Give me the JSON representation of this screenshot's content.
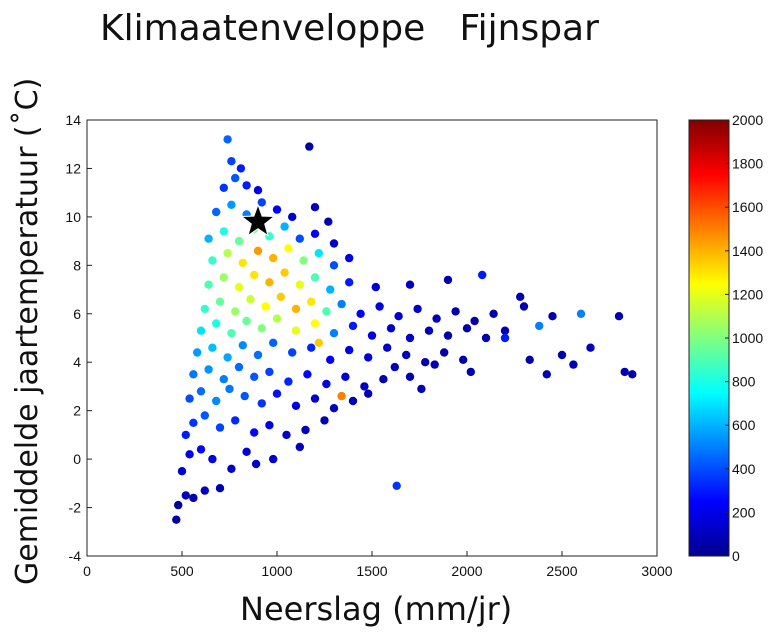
{
  "chart_data": {
    "type": "scatter",
    "title": "Klimaatenveloppe   Fijnspar",
    "xlabel": "Neerslag (mm/jr)",
    "ylabel": "Gemiddelde jaartemperatuur (˚C)",
    "xlim": [
      0,
      3000
    ],
    "ylim": [
      -4,
      14
    ],
    "x_ticks": [
      "0",
      "500",
      "1000",
      "1500",
      "2000",
      "2500",
      "3000"
    ],
    "y_ticks": [
      "-4",
      "-2",
      "0",
      "2",
      "4",
      "6",
      "8",
      "10",
      "12",
      "14"
    ],
    "grid": false,
    "colorbar": {
      "range": [
        0,
        2000
      ],
      "ticks": [
        "0",
        "200",
        "400",
        "600",
        "800",
        "1000",
        "1200",
        "1400",
        "1600",
        "1800",
        "2000"
      ],
      "colormap": "jet"
    },
    "marker": {
      "type": "star",
      "x": 900,
      "y": 9.8,
      "color": "#000000"
    },
    "points": [
      {
        "x": 470,
        "y": -2.5,
        "c": 80
      },
      {
        "x": 480,
        "y": -1.9,
        "c": 60
      },
      {
        "x": 520,
        "y": -1.5,
        "c": 120
      },
      {
        "x": 560,
        "y": -1.6,
        "c": 90
      },
      {
        "x": 620,
        "y": -1.3,
        "c": 140
      },
      {
        "x": 700,
        "y": -1.2,
        "c": 100
      },
      {
        "x": 500,
        "y": -0.5,
        "c": 160
      },
      {
        "x": 540,
        "y": 0.2,
        "c": 220
      },
      {
        "x": 600,
        "y": 0.4,
        "c": 260
      },
      {
        "x": 660,
        "y": 0.0,
        "c": 200
      },
      {
        "x": 760,
        "y": -0.4,
        "c": 130
      },
      {
        "x": 840,
        "y": 0.3,
        "c": 180
      },
      {
        "x": 520,
        "y": 1.0,
        "c": 300
      },
      {
        "x": 560,
        "y": 1.5,
        "c": 350
      },
      {
        "x": 620,
        "y": 1.8,
        "c": 420
      },
      {
        "x": 700,
        "y": 1.3,
        "c": 380
      },
      {
        "x": 780,
        "y": 1.6,
        "c": 330
      },
      {
        "x": 880,
        "y": 1.1,
        "c": 260
      },
      {
        "x": 960,
        "y": 1.4,
        "c": 200
      },
      {
        "x": 1050,
        "y": 1.0,
        "c": 140
      },
      {
        "x": 1150,
        "y": 1.2,
        "c": 110
      },
      {
        "x": 540,
        "y": 2.5,
        "c": 400
      },
      {
        "x": 600,
        "y": 2.8,
        "c": 460
      },
      {
        "x": 680,
        "y": 2.4,
        "c": 520
      },
      {
        "x": 750,
        "y": 2.9,
        "c": 480
      },
      {
        "x": 830,
        "y": 2.6,
        "c": 420
      },
      {
        "x": 920,
        "y": 2.3,
        "c": 350
      },
      {
        "x": 1000,
        "y": 2.7,
        "c": 280
      },
      {
        "x": 1100,
        "y": 2.2,
        "c": 200
      },
      {
        "x": 1200,
        "y": 2.5,
        "c": 160
      },
      {
        "x": 1300,
        "y": 2.1,
        "c": 120
      },
      {
        "x": 1400,
        "y": 2.4,
        "c": 100
      },
      {
        "x": 560,
        "y": 3.5,
        "c": 480
      },
      {
        "x": 640,
        "y": 3.7,
        "c": 540
      },
      {
        "x": 720,
        "y": 3.3,
        "c": 500
      },
      {
        "x": 800,
        "y": 3.8,
        "c": 460
      },
      {
        "x": 880,
        "y": 3.4,
        "c": 420
      },
      {
        "x": 960,
        "y": 3.6,
        "c": 380
      },
      {
        "x": 1060,
        "y": 3.2,
        "c": 320
      },
      {
        "x": 1160,
        "y": 3.5,
        "c": 260
      },
      {
        "x": 1260,
        "y": 3.1,
        "c": 210
      },
      {
        "x": 1360,
        "y": 3.4,
        "c": 170
      },
      {
        "x": 1460,
        "y": 3.0,
        "c": 130
      },
      {
        "x": 1560,
        "y": 3.3,
        "c": 100
      },
      {
        "x": 1340,
        "y": 2.6,
        "c": 1500
      },
      {
        "x": 580,
        "y": 4.4,
        "c": 560
      },
      {
        "x": 660,
        "y": 4.6,
        "c": 620
      },
      {
        "x": 740,
        "y": 4.2,
        "c": 580
      },
      {
        "x": 820,
        "y": 4.7,
        "c": 520
      },
      {
        "x": 900,
        "y": 4.3,
        "c": 470
      },
      {
        "x": 980,
        "y": 4.8,
        "c": 440
      },
      {
        "x": 1080,
        "y": 4.4,
        "c": 380
      },
      {
        "x": 1180,
        "y": 4.6,
        "c": 320
      },
      {
        "x": 1280,
        "y": 4.1,
        "c": 250
      },
      {
        "x": 1380,
        "y": 4.5,
        "c": 200
      },
      {
        "x": 1480,
        "y": 4.2,
        "c": 160
      },
      {
        "x": 1580,
        "y": 4.6,
        "c": 140
      },
      {
        "x": 1680,
        "y": 4.3,
        "c": 120
      },
      {
        "x": 1780,
        "y": 4.0,
        "c": 100
      },
      {
        "x": 1880,
        "y": 4.4,
        "c": 90
      },
      {
        "x": 1980,
        "y": 4.1,
        "c": 80
      },
      {
        "x": 600,
        "y": 5.3,
        "c": 700
      },
      {
        "x": 680,
        "y": 5.6,
        "c": 800
      },
      {
        "x": 760,
        "y": 5.2,
        "c": 900
      },
      {
        "x": 840,
        "y": 5.7,
        "c": 950
      },
      {
        "x": 920,
        "y": 5.4,
        "c": 1000
      },
      {
        "x": 1000,
        "y": 5.8,
        "c": 1100
      },
      {
        "x": 1100,
        "y": 5.3,
        "c": 1200
      },
      {
        "x": 1200,
        "y": 5.6,
        "c": 1250
      },
      {
        "x": 1220,
        "y": 4.8,
        "c": 1350
      },
      {
        "x": 1300,
        "y": 5.2,
        "c": 500
      },
      {
        "x": 1400,
        "y": 5.5,
        "c": 300
      },
      {
        "x": 1500,
        "y": 5.1,
        "c": 200
      },
      {
        "x": 1600,
        "y": 5.4,
        "c": 160
      },
      {
        "x": 1700,
        "y": 5.0,
        "c": 130
      },
      {
        "x": 1800,
        "y": 5.3,
        "c": 110
      },
      {
        "x": 1900,
        "y": 5.1,
        "c": 100
      },
      {
        "x": 2000,
        "y": 5.4,
        "c": 90
      },
      {
        "x": 2100,
        "y": 5.0,
        "c": 80
      },
      {
        "x": 2200,
        "y": 5.3,
        "c": 100
      },
      {
        "x": 620,
        "y": 6.2,
        "c": 850
      },
      {
        "x": 700,
        "y": 6.5,
        "c": 950
      },
      {
        "x": 780,
        "y": 6.1,
        "c": 1050
      },
      {
        "x": 860,
        "y": 6.6,
        "c": 1150
      },
      {
        "x": 940,
        "y": 6.3,
        "c": 1250
      },
      {
        "x": 1020,
        "y": 6.7,
        "c": 1350
      },
      {
        "x": 1100,
        "y": 6.2,
        "c": 1400
      },
      {
        "x": 1180,
        "y": 6.5,
        "c": 1300
      },
      {
        "x": 1260,
        "y": 6.1,
        "c": 900
      },
      {
        "x": 1340,
        "y": 6.4,
        "c": 500
      },
      {
        "x": 1440,
        "y": 6.0,
        "c": 250
      },
      {
        "x": 1540,
        "y": 6.3,
        "c": 180
      },
      {
        "x": 1640,
        "y": 5.9,
        "c": 150
      },
      {
        "x": 1740,
        "y": 6.2,
        "c": 130
      },
      {
        "x": 1840,
        "y": 5.8,
        "c": 110
      },
      {
        "x": 1940,
        "y": 6.1,
        "c": 100
      },
      {
        "x": 2040,
        "y": 5.7,
        "c": 90
      },
      {
        "x": 2140,
        "y": 6.0,
        "c": 80
      },
      {
        "x": 2300,
        "y": 6.3,
        "c": 100
      },
      {
        "x": 2450,
        "y": 5.9,
        "c": 90
      },
      {
        "x": 2600,
        "y": 6.0,
        "c": 500
      },
      {
        "x": 640,
        "y": 7.2,
        "c": 900
      },
      {
        "x": 720,
        "y": 7.5,
        "c": 1050
      },
      {
        "x": 800,
        "y": 7.1,
        "c": 1200
      },
      {
        "x": 880,
        "y": 7.6,
        "c": 1300
      },
      {
        "x": 960,
        "y": 7.3,
        "c": 1400
      },
      {
        "x": 1040,
        "y": 7.7,
        "c": 1350
      },
      {
        "x": 1120,
        "y": 7.2,
        "c": 1200
      },
      {
        "x": 1200,
        "y": 7.5,
        "c": 900
      },
      {
        "x": 1280,
        "y": 7.0,
        "c": 600
      },
      {
        "x": 1380,
        "y": 7.3,
        "c": 300
      },
      {
        "x": 1520,
        "y": 7.1,
        "c": 180
      },
      {
        "x": 1700,
        "y": 7.2,
        "c": 120
      },
      {
        "x": 1900,
        "y": 7.4,
        "c": 100
      },
      {
        "x": 2080,
        "y": 7.6,
        "c": 300
      },
      {
        "x": 660,
        "y": 8.2,
        "c": 850
      },
      {
        "x": 740,
        "y": 8.5,
        "c": 1100
      },
      {
        "x": 820,
        "y": 8.1,
        "c": 1300
      },
      {
        "x": 900,
        "y": 8.6,
        "c": 1450
      },
      {
        "x": 980,
        "y": 8.3,
        "c": 1400
      },
      {
        "x": 1060,
        "y": 8.7,
        "c": 1250
      },
      {
        "x": 1140,
        "y": 8.2,
        "c": 1000
      },
      {
        "x": 1220,
        "y": 8.5,
        "c": 700
      },
      {
        "x": 1300,
        "y": 8.0,
        "c": 400
      },
      {
        "x": 1380,
        "y": 8.3,
        "c": 200
      },
      {
        "x": 640,
        "y": 9.1,
        "c": 600
      },
      {
        "x": 720,
        "y": 9.4,
        "c": 800
      },
      {
        "x": 800,
        "y": 9.0,
        "c": 950
      },
      {
        "x": 880,
        "y": 9.5,
        "c": 1000
      },
      {
        "x": 960,
        "y": 9.2,
        "c": 850
      },
      {
        "x": 1040,
        "y": 9.6,
        "c": 600
      },
      {
        "x": 1120,
        "y": 9.1,
        "c": 400
      },
      {
        "x": 1200,
        "y": 9.3,
        "c": 250
      },
      {
        "x": 1300,
        "y": 8.9,
        "c": 150
      },
      {
        "x": 680,
        "y": 10.2,
        "c": 450
      },
      {
        "x": 760,
        "y": 10.5,
        "c": 550
      },
      {
        "x": 840,
        "y": 10.1,
        "c": 500
      },
      {
        "x": 920,
        "y": 10.6,
        "c": 380
      },
      {
        "x": 1000,
        "y": 10.3,
        "c": 250
      },
      {
        "x": 1080,
        "y": 10.0,
        "c": 160
      },
      {
        "x": 1200,
        "y": 10.4,
        "c": 120
      },
      {
        "x": 1270,
        "y": 9.8,
        "c": 100
      },
      {
        "x": 720,
        "y": 11.2,
        "c": 350
      },
      {
        "x": 780,
        "y": 11.6,
        "c": 420
      },
      {
        "x": 840,
        "y": 11.3,
        "c": 300
      },
      {
        "x": 900,
        "y": 11.1,
        "c": 220
      },
      {
        "x": 760,
        "y": 12.3,
        "c": 380
      },
      {
        "x": 810,
        "y": 12.0,
        "c": 300
      },
      {
        "x": 740,
        "y": 13.2,
        "c": 450
      },
      {
        "x": 1170,
        "y": 12.9,
        "c": 80
      },
      {
        "x": 1630,
        "y": -1.1,
        "c": 350
      },
      {
        "x": 2200,
        "y": 5.0,
        "c": 300
      },
      {
        "x": 2330,
        "y": 4.1,
        "c": 90
      },
      {
        "x": 2500,
        "y": 4.3,
        "c": 100
      },
      {
        "x": 2650,
        "y": 4.6,
        "c": 120
      },
      {
        "x": 2800,
        "y": 5.9,
        "c": 90
      },
      {
        "x": 2830,
        "y": 3.6,
        "c": 80
      },
      {
        "x": 2870,
        "y": 3.5,
        "c": 80
      },
      {
        "x": 2280,
        "y": 6.7,
        "c": 100
      },
      {
        "x": 2380,
        "y": 5.5,
        "c": 500
      },
      {
        "x": 2420,
        "y": 3.5,
        "c": 100
      },
      {
        "x": 2560,
        "y": 3.9,
        "c": 100
      },
      {
        "x": 2020,
        "y": 3.6,
        "c": 100
      },
      {
        "x": 1830,
        "y": 3.9,
        "c": 110
      },
      {
        "x": 1620,
        "y": 3.8,
        "c": 120
      },
      {
        "x": 1700,
        "y": 3.4,
        "c": 110
      },
      {
        "x": 1760,
        "y": 2.9,
        "c": 100
      },
      {
        "x": 1480,
        "y": 2.7,
        "c": 110
      },
      {
        "x": 1120,
        "y": 0.5,
        "c": 120
      },
      {
        "x": 980,
        "y": 0.0,
        "c": 150
      },
      {
        "x": 890,
        "y": -0.2,
        "c": 160
      },
      {
        "x": 1250,
        "y": 1.6,
        "c": 110
      }
    ]
  }
}
